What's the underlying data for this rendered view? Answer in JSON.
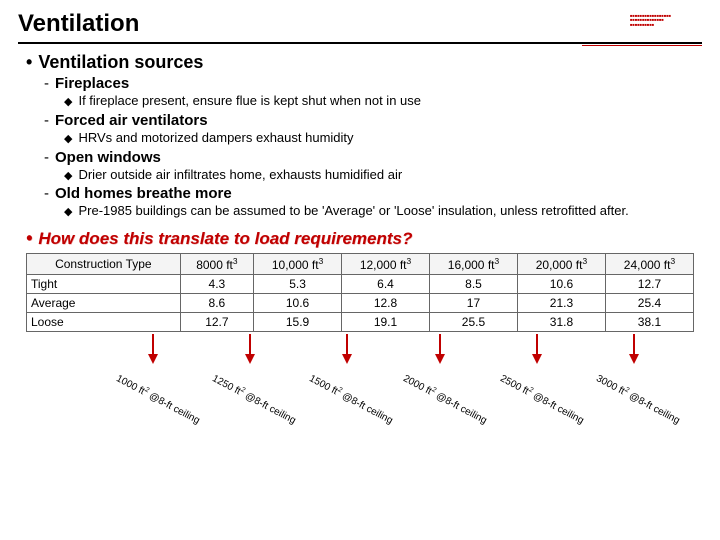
{
  "title": "Ventilation",
  "heading": "Ventilation sources",
  "items": [
    {
      "label": "Fireplaces",
      "sub": "If fireplace present, ensure flue is kept shut when not in use"
    },
    {
      "label": "Forced air ventilators",
      "sub": "HRVs and motorized dampers exhaust humidity"
    },
    {
      "label": "Open windows",
      "sub": "Drier outside air infiltrates home, exhausts humidified air"
    },
    {
      "label": "Old homes breathe more",
      "sub": "Pre-1985 buildings can be assumed to be 'Average' or 'Loose' insulation, unless retrofitted after."
    }
  ],
  "question": "How does this translate to load requirements?",
  "table": {
    "header_label": "Construction Type",
    "columns": [
      "8000 ft³",
      "10,000 ft³",
      "12,000 ft³",
      "16,000 ft³",
      "20,000 ft³",
      "24,000 ft³"
    ],
    "rows": [
      {
        "label": "Tight",
        "vals": [
          "4.3",
          "5.3",
          "6.4",
          "8.5",
          "10.6",
          "12.7"
        ]
      },
      {
        "label": "Average",
        "vals": [
          "8.6",
          "10.6",
          "12.8",
          "17",
          "21.3",
          "25.4"
        ]
      },
      {
        "label": "Loose",
        "vals": [
          "12.7",
          "15.9",
          "19.1",
          "25.5",
          "31.8",
          "38.1"
        ]
      }
    ]
  },
  "arrows": {
    "color": "#c00000",
    "positions_pct": [
      19,
      33.5,
      48,
      62,
      76.5,
      91
    ]
  },
  "foot_labels": [
    "1000 ft² @8-ft ceiling",
    "1250 ft² @8-ft ceiling",
    "1500 ft² @8-ft ceiling",
    "2000 ft² @8-ft ceiling",
    "2500 ft² @8-ft ceiling",
    "3000 ft² @8-ft ceiling"
  ],
  "foot_label_positions_pct": [
    14,
    28.5,
    43,
    57,
    71.5,
    86
  ],
  "colors": {
    "accent": "#c00000",
    "text": "#000000",
    "rule": "#000000",
    "table_border": "#666666",
    "background": "#ffffff"
  },
  "typography": {
    "title_size_pt": 24,
    "h1_size_pt": 18,
    "h2_size_pt": 15,
    "body_size_pt": 13,
    "table_size_pt": 12,
    "footlabel_size_pt": 10
  }
}
